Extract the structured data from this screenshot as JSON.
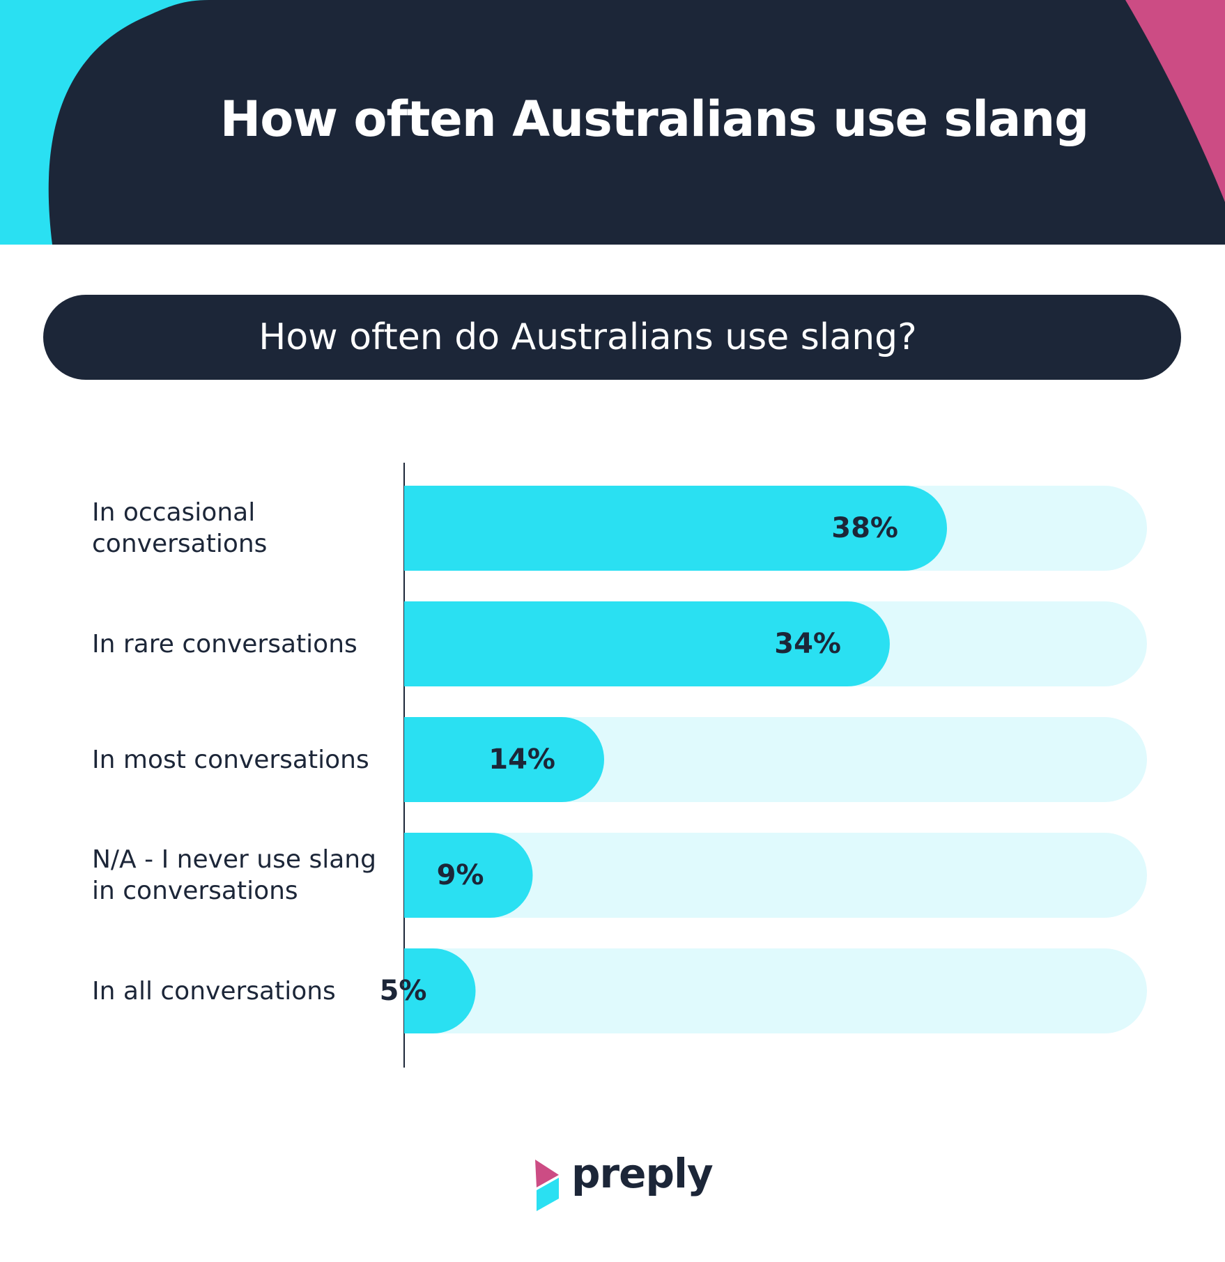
{
  "header": {
    "title": "How often Australians use slang",
    "bg_color": "#1c2638",
    "accent_left": "#2ae0f2",
    "accent_right": "#cc4c84"
  },
  "subtitle": "How often do Australians use slang?",
  "chart_data": {
    "type": "bar",
    "orientation": "horizontal",
    "title": "How often do Australians use slang?",
    "categories": [
      "In occasional conversations",
      "In rare conversations",
      "In most conversations",
      "N/A - I never use slang in conversations",
      "In all conversations"
    ],
    "values": [
      38,
      34,
      14,
      9,
      5
    ],
    "value_labels": [
      "38%",
      "34%",
      "14%",
      "9%",
      "5%"
    ],
    "xlim": [
      0,
      100
    ],
    "unit": "%",
    "bar_color": "#2ae0f2",
    "track_color": "#e0fafd",
    "grid": false,
    "legend": "none"
  },
  "brand": {
    "name": "preply",
    "colors": [
      "#cc4c84",
      "#2ae0f2"
    ]
  }
}
